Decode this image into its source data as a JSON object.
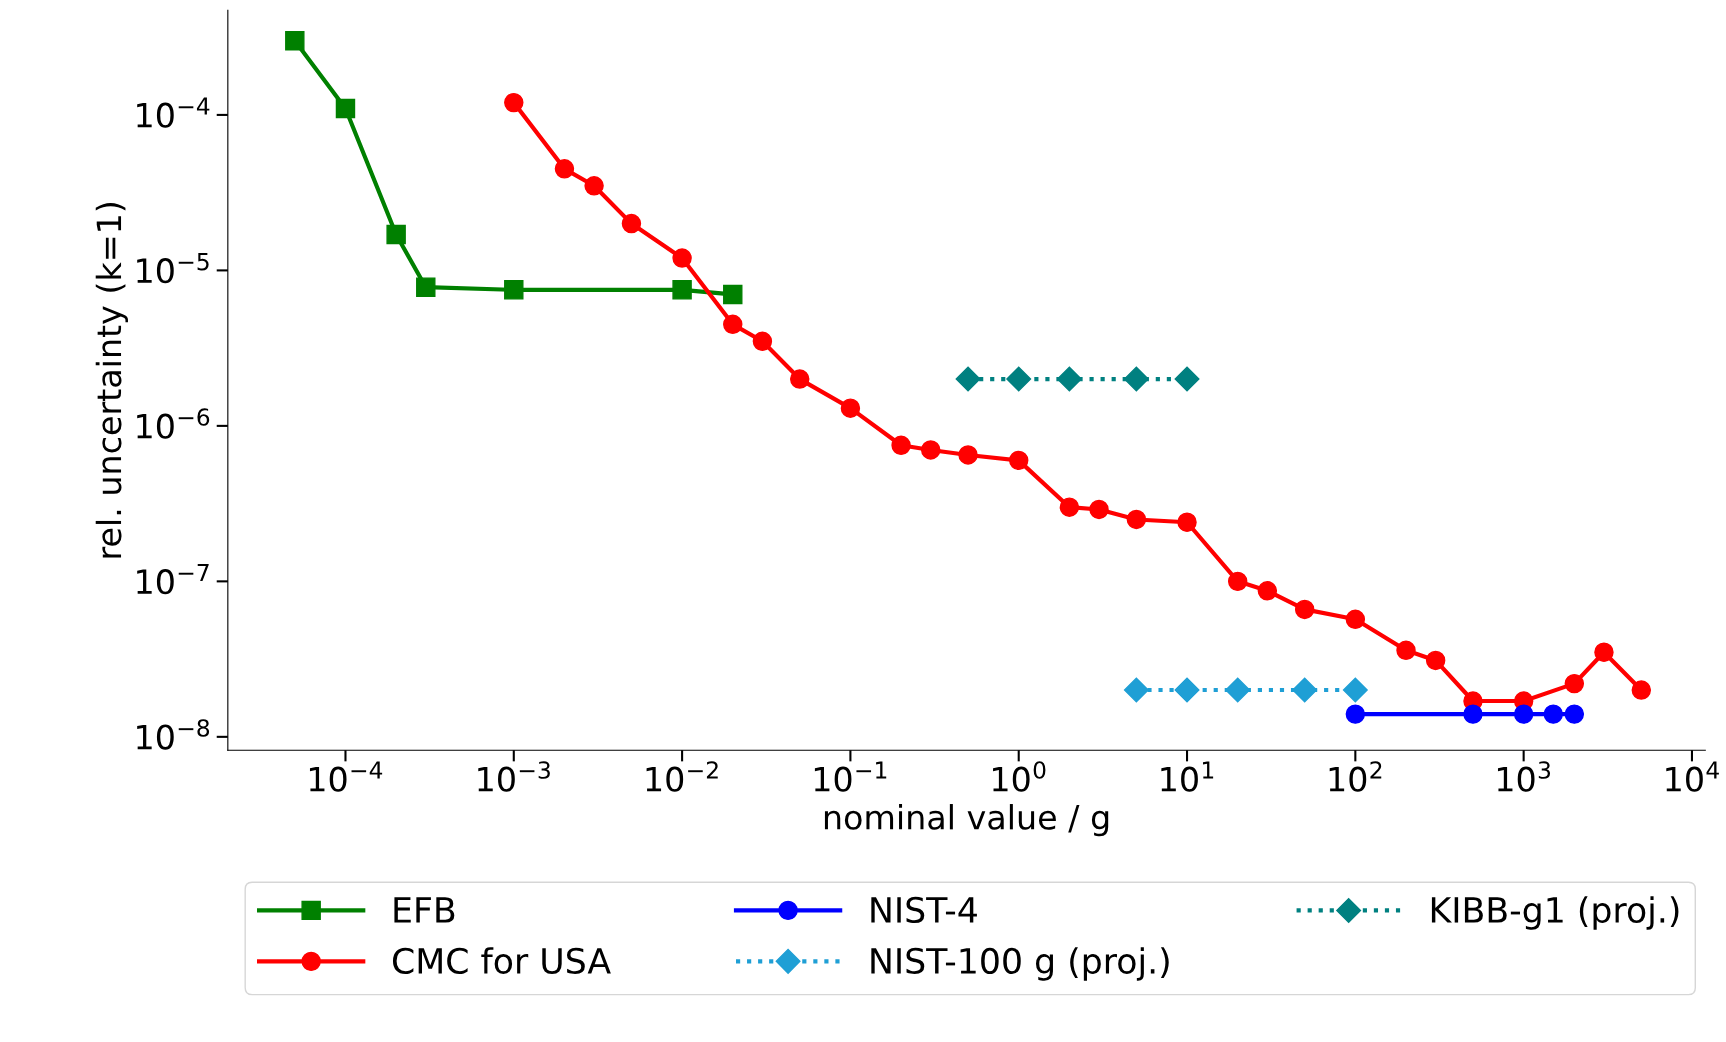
{
  "chart_data": {
    "type": "line",
    "xlabel": "nominal value / g",
    "ylabel": "rel. uncertainty (k=1)",
    "log": "xy",
    "grid": false,
    "legend": "bottom",
    "xlim": [
      2e-05,
      12000.0
    ],
    "ylim": [
      8.2e-09,
      0.00047
    ],
    "xticks": [
      {
        "value": 0.0001,
        "label": "10$^{−4}$"
      },
      {
        "value": 0.001,
        "label": "10$^{−3}$"
      },
      {
        "value": 0.01,
        "label": "10$^{−2}$"
      },
      {
        "value": 0.1,
        "label": "10$^{−1}$"
      },
      {
        "value": 1,
        "label": "10$^{0}$"
      },
      {
        "value": 10,
        "label": "10$^{1}$"
      },
      {
        "value": 100,
        "label": "10$^{2}$"
      },
      {
        "value": 1000,
        "label": "10$^{3}$"
      },
      {
        "value": 10000,
        "label": "10$^{4}$"
      }
    ],
    "yticks": [
      {
        "value": 1e-08,
        "label": "10$^{−8}$"
      },
      {
        "value": 1e-07,
        "label": "10$^{−7}$"
      },
      {
        "value": 1e-06,
        "label": "10$^{−6}$"
      },
      {
        "value": 1e-05,
        "label": "10$^{−5}$"
      },
      {
        "value": 0.0001,
        "label": "10$^{−4}$"
      }
    ],
    "series": [
      {
        "name": "EFB",
        "color": "#008000",
        "marker": "square",
        "line_style": "solid",
        "x": [
          5e-05,
          0.0001,
          0.0002,
          0.0003,
          0.001,
          0.01,
          0.02
        ],
        "values": [
          0.0003,
          0.00011,
          1.7e-05,
          7.8e-06,
          7.5e-06,
          7.5e-06,
          7e-06
        ]
      },
      {
        "name": "CMC for USA",
        "color": "#ff0000",
        "marker": "circle",
        "line_style": "solid",
        "x": [
          0.001,
          0.002,
          0.003,
          0.005,
          0.01,
          0.02,
          0.03,
          0.05,
          0.1,
          0.2,
          0.3,
          0.5,
          1,
          2,
          3,
          5,
          10,
          20,
          30,
          50,
          100,
          200,
          300,
          500,
          1000,
          2000,
          3000,
          5000
        ],
        "values": [
          0.00012,
          4.5e-05,
          3.5e-05,
          2e-05,
          1.2e-05,
          4.5e-06,
          3.5e-06,
          2e-06,
          1.3e-06,
          7.5e-07,
          7e-07,
          6.5e-07,
          6e-07,
          3e-07,
          2.9e-07,
          2.5e-07,
          2.4e-07,
          1e-07,
          8.7e-08,
          6.6e-08,
          5.7e-08,
          3.6e-08,
          3.1e-08,
          1.7e-08,
          1.7e-08,
          2.2e-08,
          3.5e-08,
          2e-08
        ]
      },
      {
        "name": "NIST-4",
        "color": "#0000ff",
        "marker": "circle",
        "line_style": "solid",
        "x": [
          100,
          500,
          1000,
          1500,
          2000
        ],
        "values": [
          1.4e-08,
          1.4e-08,
          1.4e-08,
          1.4e-08,
          1.4e-08
        ]
      },
      {
        "name": "NIST-100 g (proj.)",
        "color": "#1f9fd5",
        "marker": "diamond",
        "line_style": "dotted",
        "x": [
          5,
          10,
          20,
          50,
          100
        ],
        "values": [
          2e-08,
          2e-08,
          2e-08,
          2e-08,
          2e-08
        ]
      },
      {
        "name": "KIBB-g1 (proj.)",
        "color": "#008080",
        "marker": "diamond",
        "line_style": "dotted",
        "x": [
          0.5,
          1,
          2,
          5,
          10
        ],
        "values": [
          2e-06,
          2e-06,
          2e-06,
          2e-06,
          2e-06
        ]
      }
    ]
  }
}
